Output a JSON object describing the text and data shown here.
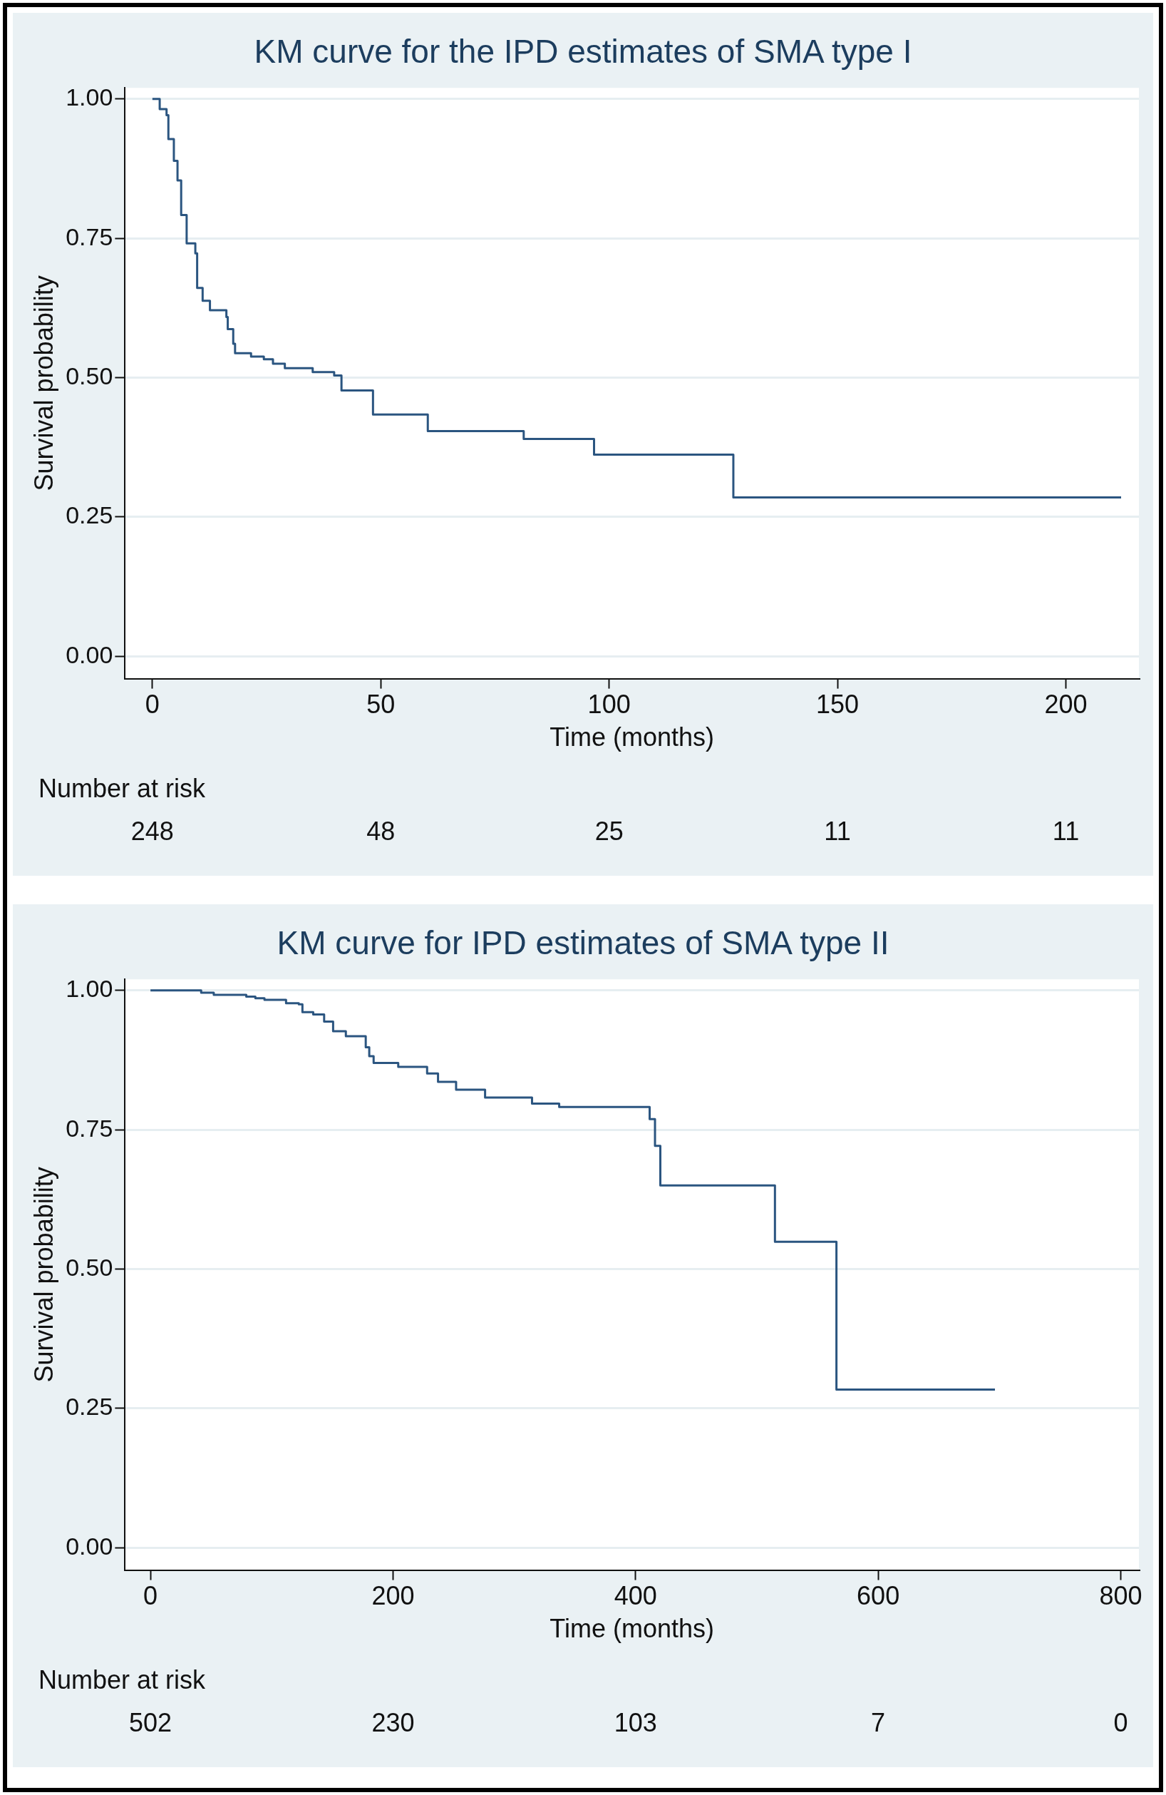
{
  "chart_data": [
    {
      "type": "step",
      "title": "KM curve for the IPD estimates of SMA type I",
      "xlabel": "Time (months)",
      "ylabel": "Survival probability",
      "x": [
        0,
        1.6,
        3.1,
        3.5,
        4.7,
        5.5,
        6.3,
        7.5,
        9.4,
        9.8,
        11.0,
        12.6,
        16.2,
        16.5,
        17.7,
        18.1,
        21.6,
        24.4,
        26.4,
        29.0,
        35.1,
        39.8,
        41.4,
        48.3,
        60.3,
        81.3,
        96.7,
        127.2,
        212.1
      ],
      "series": [
        {
          "color": "#2b5580",
          "values": [
            1.0,
            0.982,
            0.971,
            0.928,
            0.889,
            0.854,
            0.792,
            0.741,
            0.723,
            0.661,
            0.638,
            0.621,
            0.609,
            0.587,
            0.561,
            0.544,
            0.538,
            0.533,
            0.525,
            0.517,
            0.51,
            0.504,
            0.477,
            0.434,
            0.404,
            0.39,
            0.362,
            0.285,
            0.285
          ]
        }
      ],
      "xlim": [
        -6,
        216
      ],
      "ylim": [
        -0.04,
        1.02
      ],
      "xticks": [
        0,
        50,
        100,
        150,
        200
      ],
      "yticks": [
        {
          "value": 0,
          "label": "0.00"
        },
        {
          "value": 0.25,
          "label": "0.25"
        },
        {
          "value": 0.5,
          "label": "0.50"
        },
        {
          "value": 0.75,
          "label": "0.75"
        },
        {
          "value": 1,
          "label": "1.00"
        }
      ],
      "grid": "y",
      "legend": false,
      "annotations": [
        "Number at risk",
        "248",
        "48",
        "25",
        "11",
        "11"
      ]
    },
    {
      "type": "step",
      "title": "KM curve for IPD estimates of SMA type II",
      "xlabel": "Time (months)",
      "ylabel": "Survival probability",
      "x": [
        0,
        41.8,
        52.2,
        79.0,
        86.5,
        94,
        111.8,
        122.3,
        125.3,
        134.2,
        143.2,
        150.6,
        161.1,
        177.5,
        180.4,
        184.0,
        204.3,
        228.1,
        237.1,
        252.0,
        275.9,
        314.6,
        337,
        411.6,
        416.0,
        420.4,
        514.9,
        565.6,
        696.3
      ],
      "series": [
        {
          "color": "#2b5580",
          "values": [
            1.0,
            0.996,
            0.992,
            0.989,
            0.986,
            0.983,
            0.977,
            0.975,
            0.961,
            0.957,
            0.944,
            0.927,
            0.918,
            0.898,
            0.882,
            0.87,
            0.863,
            0.851,
            0.836,
            0.822,
            0.808,
            0.797,
            0.791,
            0.769,
            0.721,
            0.65,
            0.549,
            0.284,
            0.284
          ]
        }
      ],
      "xlim": [
        -21,
        815
      ],
      "ylim": [
        -0.04,
        1.02
      ],
      "xticks": [
        0,
        200,
        400,
        600,
        800
      ],
      "yticks": [
        {
          "value": 0,
          "label": "0.00"
        },
        {
          "value": 0.25,
          "label": "0.25"
        },
        {
          "value": 0.5,
          "label": "0.50"
        },
        {
          "value": 0.75,
          "label": "0.75"
        },
        {
          "value": 1,
          "label": "1.00"
        }
      ],
      "grid": "y",
      "legend": false,
      "annotations": [
        "Number at risk",
        "502",
        "230",
        "103",
        "7",
        "0"
      ]
    }
  ]
}
